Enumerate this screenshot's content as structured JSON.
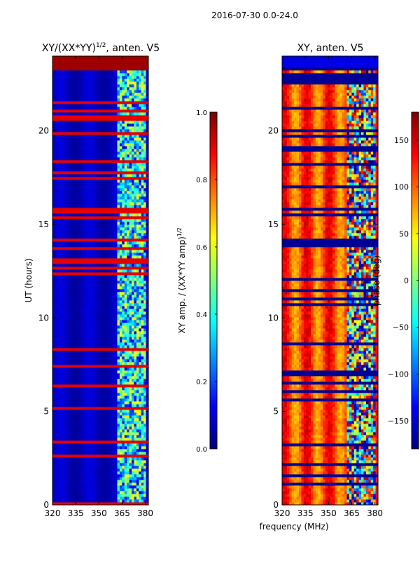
{
  "figure": {
    "suptitle": "2016-07-30 0.0-24.0",
    "shared_xlabel": "frequency (MHz)"
  },
  "chart_data": [
    {
      "type": "heatmap",
      "title_main": "XY/(XX*YY)",
      "title_sup": "1/2",
      "title_rest": ", anten. V5",
      "ylabel": "UT (hours)",
      "xlim": [
        320,
        382
      ],
      "ylim": [
        0,
        24
      ],
      "xticks": [
        320,
        335,
        350,
        365,
        380
      ],
      "yticks": [
        0,
        5,
        10,
        15,
        20
      ],
      "colormap": "jet",
      "colorbar": {
        "label_main": "XY amp. / (XX*YY amp)",
        "label_sup": "1/2",
        "range": [
          0.0,
          1.0
        ],
        "ticks": [
          0.0,
          0.2,
          0.4,
          0.6,
          0.8,
          1.0
        ],
        "tick_labels": [
          "0.0",
          "0.2",
          "0.4",
          "0.6",
          "0.8",
          "1.0"
        ]
      },
      "features": {
        "saturated_band_hours": [
          23.3,
          24.0
        ],
        "rfi_band_mhz": [
          362,
          380
        ],
        "background_value": 0.05
      }
    },
    {
      "type": "heatmap",
      "title": "XY, anten. V5",
      "xlim": [
        320,
        382
      ],
      "ylim": [
        0,
        24
      ],
      "xticks": [
        320,
        335,
        350,
        365,
        380
      ],
      "yticks": [
        0,
        5,
        10,
        15,
        20
      ],
      "colormap": "jet",
      "colorbar": {
        "label": "phase (deg)",
        "range": [
          -180,
          180
        ],
        "ticks": [
          -150,
          -100,
          -50,
          0,
          50,
          100,
          150
        ],
        "tick_labels": [
          "−150",
          "−100",
          "−50",
          "0",
          "50",
          "100",
          "150"
        ]
      },
      "features": {
        "blank_band_hours": [
          23.4,
          24.0
        ],
        "rfi_band_mhz": [
          362,
          380
        ],
        "typical_phase_deg": 110
      }
    }
  ]
}
